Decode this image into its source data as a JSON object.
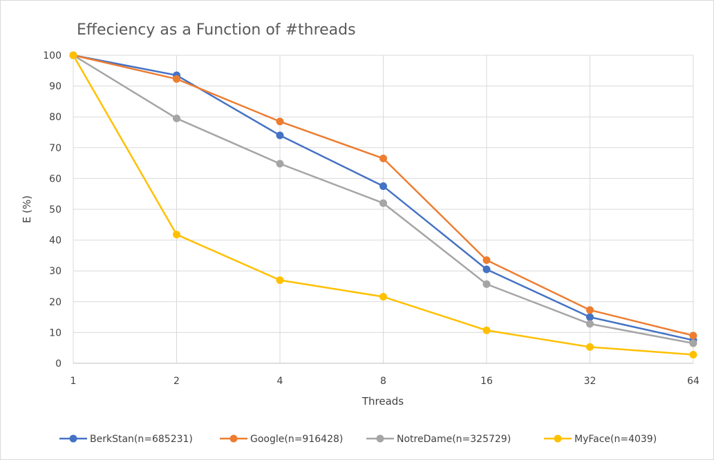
{
  "chart_data": {
    "type": "line",
    "title": "Effeciency as a Function of #threads",
    "xlabel": "Threads",
    "ylabel": "E (%)",
    "categories": [
      "1",
      "2",
      "4",
      "8",
      "16",
      "32",
      "64"
    ],
    "ylim": [
      0,
      100
    ],
    "yticks": [
      "0",
      "10",
      "20",
      "30",
      "40",
      "50",
      "60",
      "70",
      "80",
      "90",
      "100"
    ],
    "grid": true,
    "legend_position": "bottom",
    "series": [
      {
        "name": "BerkStan(n=685231)",
        "color": "#4472C4",
        "values": [
          100,
          93.5,
          74,
          57.5,
          30.5,
          15,
          7.5
        ]
      },
      {
        "name": "Google(n=916428)",
        "color": "#ED7D31",
        "values": [
          100,
          92.3,
          78.5,
          66.5,
          33.5,
          17.3,
          9
        ]
      },
      {
        "name": "NotreDame(n=325729)",
        "color": "#A5A5A5",
        "values": [
          100,
          79.5,
          64.8,
          52,
          25.7,
          12.8,
          6.5
        ]
      },
      {
        "name": "MyFace(n=4039)",
        "color": "#FFC000",
        "values": [
          100,
          41.8,
          27,
          21.6,
          10.7,
          5.3,
          2.8
        ]
      }
    ]
  }
}
